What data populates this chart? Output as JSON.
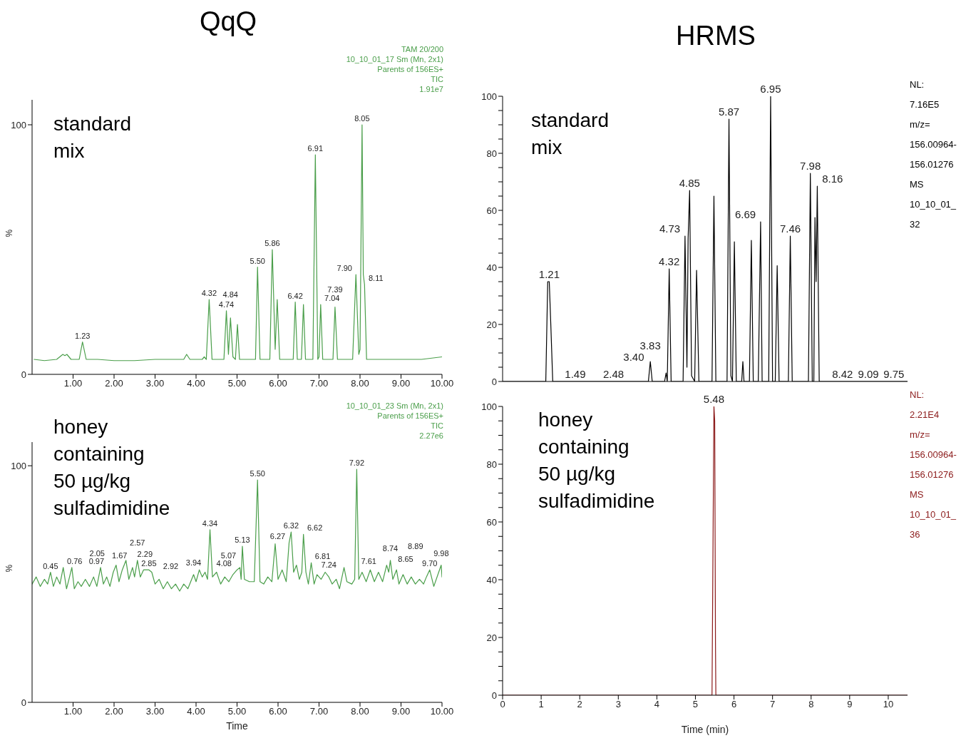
{
  "chart_data": [
    {
      "type": "line",
      "title": "QqQ",
      "subtitle": "standard mix",
      "ylabel": "%",
      "xlim": [
        0,
        10
      ],
      "ylim": [
        0,
        110
      ],
      "xticks": [
        {
          "value": 1,
          "label": "1.00"
        },
        {
          "value": 2,
          "label": "2.00"
        },
        {
          "value": 3,
          "label": "3.00"
        },
        {
          "value": 4,
          "label": "4.00"
        },
        {
          "value": 5,
          "label": "5.00"
        },
        {
          "value": 6,
          "label": "6.00"
        },
        {
          "value": 7,
          "label": "7.00"
        },
        {
          "value": 8,
          "label": "8.00"
        },
        {
          "value": 9,
          "label": "9.00"
        },
        {
          "value": 10,
          "label": "10.00"
        }
      ],
      "yticks": [
        0,
        100
      ],
      "x": [
        0.05,
        0.3,
        0.6,
        0.75,
        0.8,
        0.85,
        0.95,
        1.15,
        1.23,
        1.32,
        1.6,
        2.0,
        2.5,
        3.0,
        3.5,
        3.7,
        3.77,
        3.85,
        4.15,
        4.2,
        4.25,
        4.32,
        4.39,
        4.68,
        4.74,
        4.79,
        4.84,
        4.9,
        4.96,
        5.01,
        5.06,
        5.45,
        5.5,
        5.56,
        5.8,
        5.86,
        5.93,
        5.98,
        6.04,
        6.37,
        6.42,
        6.47,
        6.57,
        6.62,
        6.67,
        6.85,
        6.91,
        6.97,
        7.0,
        7.04,
        7.09,
        7.34,
        7.39,
        7.45,
        7.82,
        7.9,
        7.97,
        8.0,
        8.05,
        8.08,
        8.11,
        8.16,
        8.5,
        9.0,
        9.5,
        10.0
      ],
      "series": [
        {
          "color": "#4a9e4a",
          "values": [
            6,
            5.5,
            6,
            8,
            7.5,
            8,
            6,
            6,
            13,
            6,
            6,
            5.5,
            5.5,
            6,
            6,
            6,
            8,
            6,
            6,
            7,
            6,
            30,
            6,
            6,
            25.5,
            8,
            22.6,
            7,
            6,
            20,
            6,
            6,
            43,
            6,
            6,
            50,
            10,
            30,
            6,
            6,
            29,
            6,
            6,
            28,
            6,
            6,
            88,
            6,
            7,
            28,
            6,
            6,
            27,
            6,
            6,
            40,
            8,
            10,
            100,
            40,
            36,
            6,
            6,
            6,
            6,
            7
          ]
        }
      ],
      "annotations": [
        "TAM 20/200",
        "10_10_01_17 Sm (Mn, 2x1)",
        "Parents of 156ES+",
        "TIC",
        "1.91e7",
        {
          "text": "1.23",
          "x": 1.23,
          "y": 13
        },
        {
          "text": "4.32",
          "x": 4.32,
          "y": 30
        },
        {
          "text": "4.74",
          "x": 4.74,
          "y": 25.5
        },
        {
          "text": "4.84",
          "x": 4.84,
          "y": 22.6
        },
        {
          "text": "5.50",
          "x": 5.5,
          "y": 43
        },
        {
          "text": "5.86",
          "x": 5.86,
          "y": 50
        },
        {
          "text": "6.42",
          "x": 6.42,
          "y": 29
        },
        {
          "text": "6.91",
          "x": 6.91,
          "y": 88
        },
        {
          "text": "7.04",
          "x": 7.04,
          "y": 28
        },
        {
          "text": "7.39",
          "x": 7.39,
          "y": 27
        },
        {
          "text": "7.90",
          "x": 7.9,
          "y": 40
        },
        {
          "text": "8.05",
          "x": 8.05,
          "y": 100
        },
        {
          "text": "8.11",
          "x": 8.11,
          "y": 36
        }
      ]
    },
    {
      "type": "line",
      "subtitle": "honey containing 50 µg/kg sulfadimidine",
      "xlabel": "Time",
      "ylabel": "%",
      "xlim": [
        0,
        10
      ],
      "ylim": [
        0,
        110
      ],
      "xticks": [
        {
          "value": 1,
          "label": "1.00"
        },
        {
          "value": 2,
          "label": "2.00"
        },
        {
          "value": 3,
          "label": "3.00"
        },
        {
          "value": 4,
          "label": "4.00"
        },
        {
          "value": 5,
          "label": "5.00"
        },
        {
          "value": 6,
          "label": "6.00"
        },
        {
          "value": 7,
          "label": "7.00"
        },
        {
          "value": 8,
          "label": "8.00"
        },
        {
          "value": 9,
          "label": "9.00"
        },
        {
          "value": 10,
          "label": "10.00"
        }
      ],
      "yticks": [
        0,
        100
      ],
      "x": [
        0.0,
        0.1,
        0.2,
        0.3,
        0.38,
        0.45,
        0.52,
        0.6,
        0.68,
        0.76,
        0.84,
        0.9,
        0.97,
        1.03,
        1.12,
        1.2,
        1.3,
        1.4,
        1.5,
        1.58,
        1.67,
        1.74,
        1.82,
        1.9,
        1.98,
        2.05,
        2.12,
        2.2,
        2.29,
        2.36,
        2.45,
        2.5,
        2.57,
        2.64,
        2.72,
        2.85,
        2.92,
        3.0,
        3.1,
        3.2,
        3.3,
        3.4,
        3.5,
        3.6,
        3.7,
        3.8,
        3.94,
        4.0,
        4.08,
        4.15,
        4.22,
        4.28,
        4.34,
        4.4,
        4.5,
        4.6,
        4.7,
        4.8,
        4.9,
        5.0,
        5.07,
        5.1,
        5.13,
        5.18,
        5.3,
        5.42,
        5.5,
        5.56,
        5.65,
        5.75,
        5.85,
        5.93,
        6.0,
        6.1,
        6.2,
        6.27,
        6.32,
        6.38,
        6.45,
        6.52,
        6.58,
        6.62,
        6.68,
        6.74,
        6.81,
        6.88,
        6.95,
        7.05,
        7.15,
        7.24,
        7.32,
        7.42,
        7.5,
        7.61,
        7.68,
        7.8,
        7.87,
        7.92,
        7.97,
        8.05,
        8.15,
        8.25,
        8.35,
        8.45,
        8.55,
        8.65,
        8.7,
        8.74,
        8.8,
        8.89,
        8.95,
        9.05,
        9.15,
        9.25,
        9.35,
        9.45,
        9.55,
        9.62,
        9.7,
        9.8,
        9.9,
        9.98,
        10.0
      ],
      "series": [
        {
          "color": "#4a9e4a",
          "values": [
            50,
            53,
            49,
            52,
            50,
            55,
            49,
            53,
            50,
            57,
            48,
            52,
            57,
            48,
            51,
            49,
            52,
            49,
            53,
            49,
            57,
            50,
            53,
            49,
            55,
            58,
            51,
            56,
            60,
            52,
            57,
            53,
            60,
            53,
            56,
            56,
            55,
            50,
            52,
            48,
            51,
            48,
            50,
            47,
            50,
            48,
            54,
            51,
            56,
            53,
            55,
            52,
            73,
            53,
            55,
            50,
            53,
            51,
            54,
            56,
            57,
            52,
            66,
            52,
            51,
            51,
            94,
            51,
            50,
            53,
            51,
            67,
            52,
            56,
            51,
            67.5,
            72,
            55,
            58,
            52,
            55,
            71,
            55,
            50,
            59,
            50,
            54,
            52,
            55,
            53,
            50,
            52,
            48,
            57,
            51,
            50,
            52,
            98.5,
            52,
            55,
            51,
            56,
            51,
            55,
            51,
            58,
            55,
            60,
            52,
            56,
            50,
            54,
            50,
            53,
            50,
            52,
            50,
            53,
            56,
            49,
            54,
            58,
            53
          ]
        }
      ],
      "annotations": [
        "10_10_01_23 Sm (Mn, 2x1)",
        "Parents of 156ES+",
        "TIC",
        "2.27e6",
        {
          "text": "0.45",
          "x": 0.45,
          "y": 55
        },
        {
          "text": "0.76",
          "x": 0.76,
          "y": 57
        },
        {
          "text": "0.97",
          "x": 0.97,
          "y": 57
        },
        {
          "text": "1.67",
          "x": 1.67,
          "y": 57
        },
        {
          "text": "2.05",
          "x": 2.05,
          "y": 58
        },
        {
          "text": "2.29",
          "x": 2.29,
          "y": 60
        },
        {
          "text": "2.57",
          "x": 2.57,
          "y": 60
        },
        {
          "text": "2.85",
          "x": 2.85,
          "y": 56
        },
        {
          "text": "2.92",
          "x": 2.92,
          "y": 55
        },
        {
          "text": "3.94",
          "x": 3.94,
          "y": 54
        },
        {
          "text": "4.08",
          "x": 4.08,
          "y": 56
        },
        {
          "text": "4.34",
          "x": 4.34,
          "y": 73
        },
        {
          "text": "5.07",
          "x": 5.07,
          "y": 57
        },
        {
          "text": "5.13",
          "x": 5.13,
          "y": 66
        },
        {
          "text": "5.50",
          "x": 5.5,
          "y": 94
        },
        {
          "text": "6.27",
          "x": 6.27,
          "y": 67.5
        },
        {
          "text": "6.32",
          "x": 6.32,
          "y": 72
        },
        {
          "text": "6.62",
          "x": 6.62,
          "y": 71
        },
        {
          "text": "6.81",
          "x": 6.81,
          "y": 59
        },
        {
          "text": "7.24",
          "x": 7.24,
          "y": 53
        },
        {
          "text": "7.61",
          "x": 7.61,
          "y": 57
        },
        {
          "text": "7.92",
          "x": 7.92,
          "y": 98.5
        },
        {
          "text": "8.65",
          "x": 8.65,
          "y": 58
        },
        {
          "text": "8.74",
          "x": 8.74,
          "y": 60
        },
        {
          "text": "8.89",
          "x": 8.89,
          "y": 56
        },
        {
          "text": "9.70",
          "x": 9.7,
          "y": 56
        },
        {
          "text": "9.98",
          "x": 9.98,
          "y": 58
        }
      ]
    },
    {
      "type": "line",
      "title": "HRMS",
      "subtitle": "standard mix",
      "tick_labels": "y",
      "xlim": [
        0,
        10.5
      ],
      "ylim": [
        0,
        100
      ],
      "yticks": [
        0,
        {
          "value": 5,
          "label": null
        },
        {
          "value": 10,
          "label": null
        },
        {
          "value": 15,
          "label": null
        },
        20,
        {
          "value": 25,
          "label": null
        },
        {
          "value": 30,
          "label": null
        },
        {
          "value": 35,
          "label": null
        },
        40,
        {
          "value": 45,
          "label": null
        },
        {
          "value": 50,
          "label": null
        },
        {
          "value": 55,
          "label": null
        },
        60,
        {
          "value": 65,
          "label": null
        },
        {
          "value": 70,
          "label": null
        },
        {
          "value": 75,
          "label": null
        },
        80,
        {
          "value": 85,
          "label": null
        },
        {
          "value": 90,
          "label": null
        },
        {
          "value": 95,
          "label": null
        },
        100
      ],
      "x": [
        0,
        1.12,
        1.17,
        1.21,
        1.25,
        1.3,
        1.49,
        2.48,
        3.4,
        3.78,
        3.83,
        3.88,
        4.2,
        4.24,
        4.27,
        4.32,
        4.37,
        4.68,
        4.73,
        4.78,
        4.81,
        4.85,
        4.9,
        4.98,
        5.03,
        5.09,
        5.43,
        5.48,
        5.53,
        5.82,
        5.87,
        5.92,
        5.96,
        6.01,
        6.06,
        6.2,
        6.23,
        6.26,
        6.4,
        6.45,
        6.5,
        6.63,
        6.69,
        6.73,
        6.9,
        6.95,
        7.0,
        7.07,
        7.12,
        7.17,
        7.41,
        7.46,
        7.51,
        7.93,
        7.98,
        8.03,
        8.07,
        8.1,
        8.13,
        8.16,
        8.21,
        8.42,
        9.09,
        9.75,
        10.5
      ],
      "series": [
        {
          "color": "#000000",
          "values": [
            0,
            0,
            35,
            35,
            20,
            0,
            0,
            0,
            0,
            0,
            7,
            0,
            0,
            3,
            0,
            39.5,
            0,
            0,
            51,
            5,
            50,
            67,
            2,
            0,
            39,
            0,
            0,
            65,
            0,
            0,
            92,
            2,
            0,
            49,
            0,
            0,
            7,
            0,
            0,
            49.5,
            0,
            0,
            56,
            0,
            0,
            100,
            0,
            0,
            40.6,
            0,
            0,
            51,
            0,
            0,
            73,
            0,
            0,
            57.5,
            35,
            68.5,
            0,
            0,
            0,
            0,
            0
          ]
        }
      ],
      "annotations": [
        "NL:",
        "7.16E5",
        "m/z=",
        "156.00964-",
        "156.01276",
        "MS",
        "10_10_01_",
        "32",
        {
          "text": "1.21",
          "x": 1.21,
          "y": 35
        },
        {
          "text": "1.49",
          "x": 1.49,
          "y": 0
        },
        {
          "text": "2.48",
          "x": 2.48,
          "y": 0
        },
        {
          "text": "3.40",
          "x": 3.4,
          "y": 0
        },
        {
          "text": "3.83",
          "x": 3.83,
          "y": 7
        },
        {
          "text": "4.32",
          "x": 4.32,
          "y": 39.5
        },
        {
          "text": "4.73",
          "x": 4.73,
          "y": 51
        },
        {
          "text": "4.85",
          "x": 4.85,
          "y": 67
        },
        {
          "text": "5.87",
          "x": 5.87,
          "y": 92
        },
        {
          "text": "6.69",
          "x": 6.69,
          "y": 56
        },
        {
          "text": "6.95",
          "x": 6.95,
          "y": 100
        },
        {
          "text": "7.46",
          "x": 7.46,
          "y": 51
        },
        {
          "text": "7.98",
          "x": 7.98,
          "y": 73
        },
        {
          "text": "8.16",
          "x": 8.16,
          "y": 68.5
        },
        {
          "text": "8.42",
          "x": 8.42,
          "y": 0
        },
        {
          "text": "9.09",
          "x": 9.09,
          "y": 0
        },
        {
          "text": "9.75",
          "x": 9.75,
          "y": 0
        }
      ]
    },
    {
      "type": "line",
      "subtitle": "honey containing 50 µg/kg sulfadimidine",
      "xlabel": "Time (min)",
      "xlim": [
        0,
        10.5
      ],
      "ylim": [
        0,
        100
      ],
      "xticks": [
        0,
        1,
        2,
        3,
        4,
        5,
        6,
        7,
        8,
        9,
        10
      ],
      "yticks": [
        0,
        {
          "value": 5,
          "label": null
        },
        {
          "value": 10,
          "label": null
        },
        {
          "value": 15,
          "label": null
        },
        20,
        {
          "value": 25,
          "label": null
        },
        {
          "value": 30,
          "label": null
        },
        {
          "value": 35,
          "label": null
        },
        40,
        {
          "value": 45,
          "label": null
        },
        {
          "value": 50,
          "label": null
        },
        {
          "value": 55,
          "label": null
        },
        60,
        {
          "value": 65,
          "label": null
        },
        {
          "value": 70,
          "label": null
        },
        {
          "value": 75,
          "label": null
        },
        80,
        {
          "value": 85,
          "label": null
        },
        {
          "value": 90,
          "label": null
        },
        {
          "value": 95,
          "label": null
        },
        100
      ],
      "x": [
        0,
        5.43,
        5.48,
        5.5,
        5.52,
        5.53,
        10.5
      ],
      "series": [
        {
          "color": "#8b1a1a",
          "values": [
            0,
            0,
            100,
            95,
            18,
            0,
            0
          ]
        }
      ],
      "annotations": [
        "NL:",
        "2.21E4",
        "m/z=",
        "156.00964-",
        "156.01276",
        "MS",
        "10_10_01_",
        "36",
        {
          "text": "5.48",
          "x": 5.48,
          "y": 100
        }
      ]
    }
  ]
}
